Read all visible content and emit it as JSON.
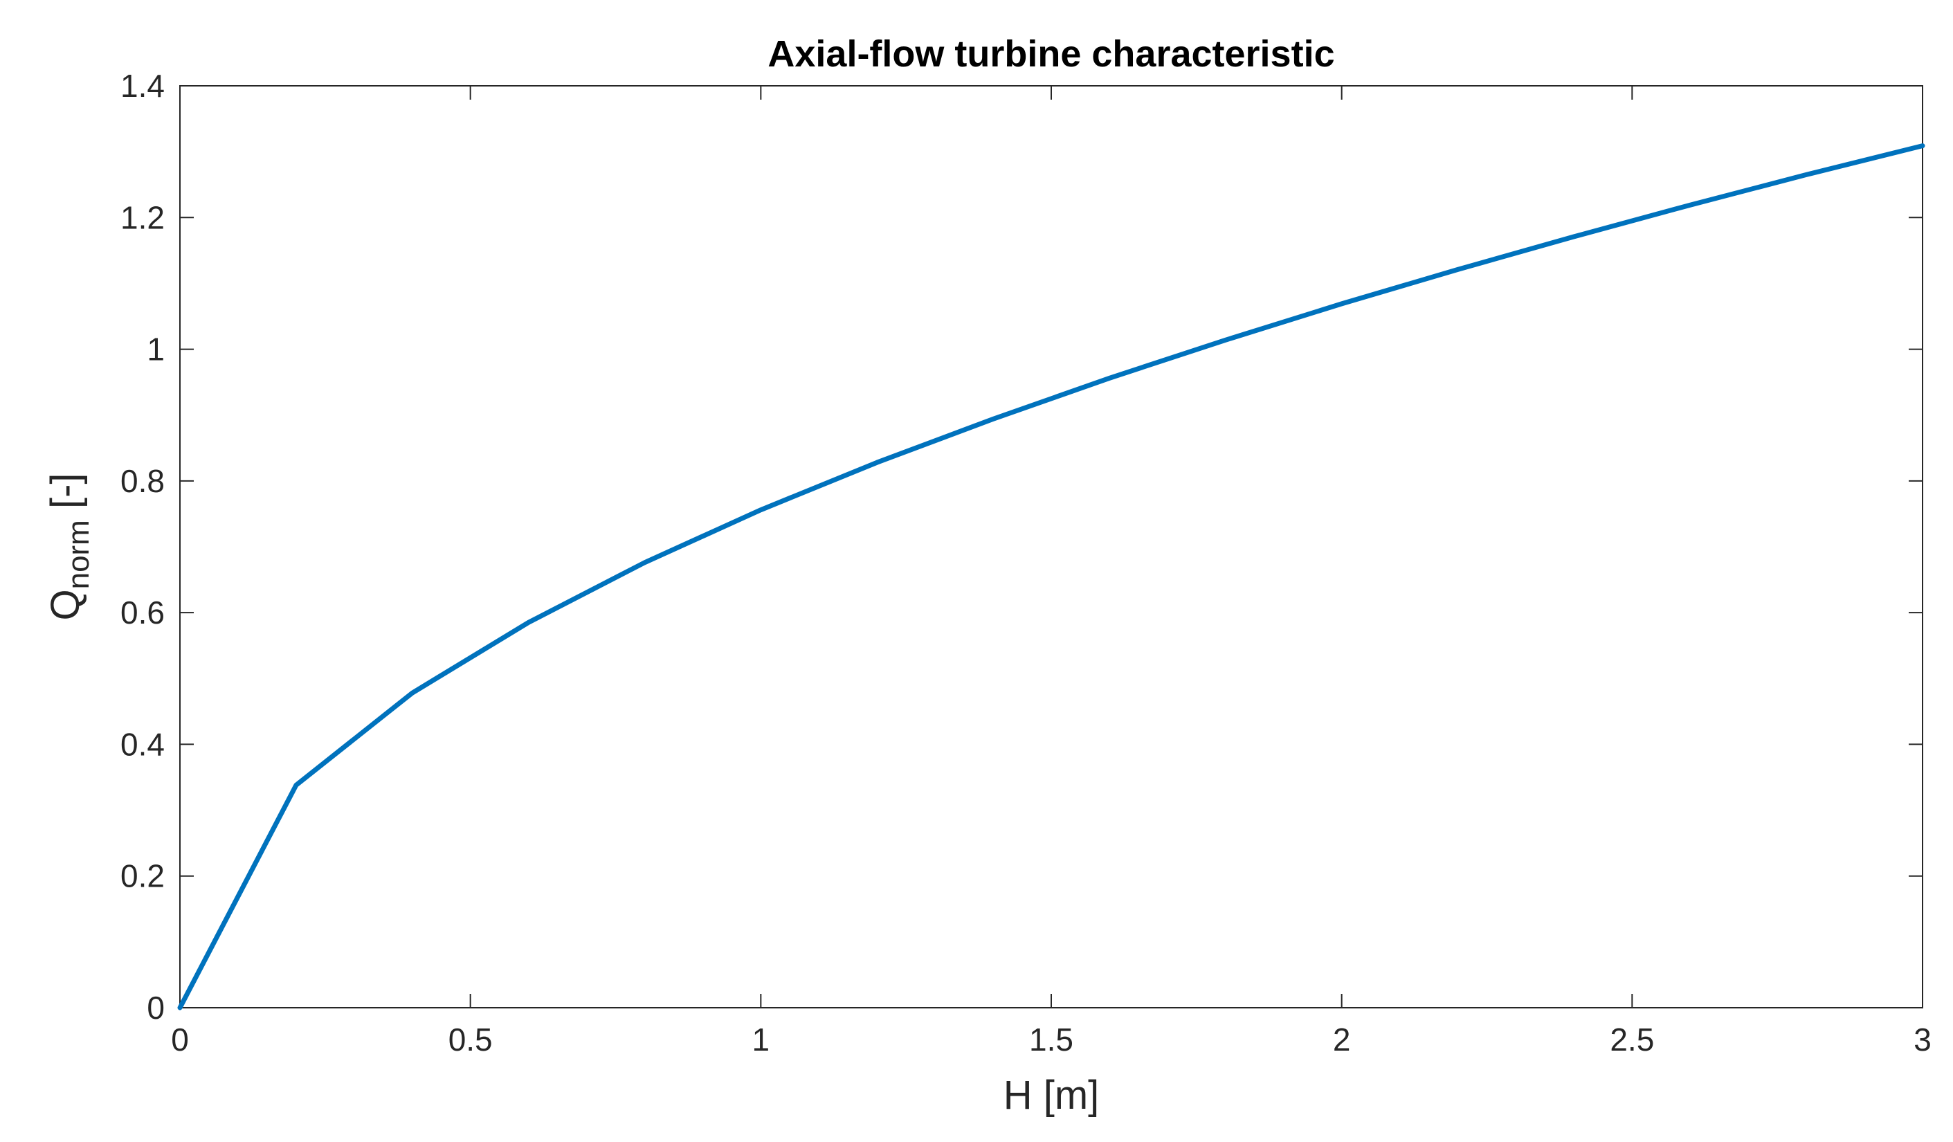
{
  "chart_data": {
    "type": "line",
    "title": "Axial-flow turbine characteristic",
    "xlabel": "H [m]",
    "ylabel": {
      "main": "Q",
      "subscript": "norm",
      "suffix": " [-]"
    },
    "xlim": [
      0,
      3
    ],
    "ylim": [
      0,
      1.4
    ],
    "x_ticks": [
      0,
      0.5,
      1,
      1.5,
      2,
      2.5,
      3
    ],
    "x_tick_labels": [
      "0",
      "0.5",
      "1",
      "1.5",
      "2",
      "2.5",
      "3"
    ],
    "y_ticks": [
      0,
      0.2,
      0.4,
      0.6,
      0.8,
      1,
      1.2,
      1.4
    ],
    "y_tick_labels": [
      "0",
      "0.2",
      "0.4",
      "0.6",
      "0.8",
      "1",
      "1.2",
      "1.4"
    ],
    "grid": false,
    "legend": "none",
    "series": [
      {
        "color": "#0072BD",
        "x": [
          0,
          0.2,
          0.4,
          0.6,
          0.8,
          1.0,
          1.2,
          1.4,
          1.6,
          1.8,
          2.0,
          2.2,
          2.4,
          2.6,
          2.8,
          3.0
        ],
        "y": [
          0,
          0.338,
          0.478,
          0.585,
          0.676,
          0.756,
          0.828,
          0.894,
          0.956,
          1.014,
          1.069,
          1.121,
          1.171,
          1.219,
          1.265,
          1.309
        ]
      }
    ]
  }
}
